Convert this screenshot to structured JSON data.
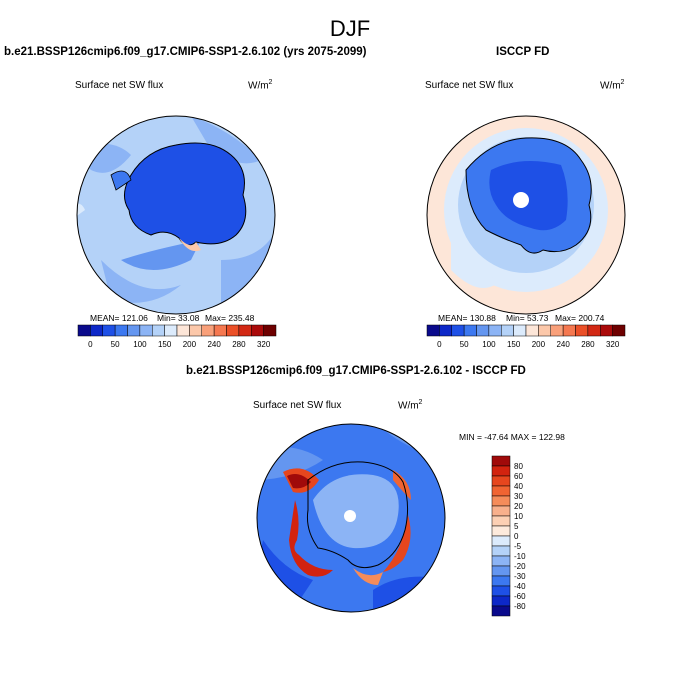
{
  "title": "DJF",
  "panels": [
    {
      "title": "b.e21.BSSP126cmip6.f09_g17.CMIP6-SSP1-2.6.102 (yrs 2075-2099)",
      "variable": "Surface net SW flux",
      "units_base": "W/m",
      "units_exp": "2",
      "stats": {
        "mean": "MEAN= 121.06",
        "min": "Min=  33.08",
        "max": "Max= 235.48"
      }
    },
    {
      "title": "ISCCP FD",
      "variable": "Surface net SW flux",
      "units_base": "W/m",
      "units_exp": "2",
      "stats": {
        "mean": "MEAN= 130.88",
        "min": "Min=  53.73",
        "max": "Max= 200.74"
      }
    },
    {
      "title": "b.e21.BSSP126cmip6.f09_g17.CMIP6-SSP1-2.6.102 - ISCCP FD",
      "variable": "Surface net SW flux",
      "units_base": "W/m",
      "units_exp": "2",
      "minmax": "MIN = -47.64 MAX = 122.98"
    }
  ],
  "abs_colorbar": {
    "labels": [
      "0",
      "50",
      "100",
      "150",
      "200",
      "240",
      "280",
      "320"
    ],
    "colors": [
      "#0a0a8c",
      "#0d28c8",
      "#1e50e6",
      "#3c78f0",
      "#6496f0",
      "#8cb4f5",
      "#b4d2f8",
      "#dcebfc",
      "#fde6d8",
      "#fcc8aa",
      "#f9a07a",
      "#f57850",
      "#eb5028",
      "#d22814",
      "#aa0a0a",
      "#6e0000"
    ]
  },
  "diff_colorbar": {
    "labels": [
      "80",
      "60",
      "40",
      "30",
      "20",
      "10",
      "5",
      "0",
      "-5",
      "-10",
      "-20",
      "-30",
      "-40",
      "-60",
      "-80"
    ],
    "colors": [
      "#a00a0a",
      "#d2230f",
      "#e6461e",
      "#f06432",
      "#f58c5a",
      "#f8b08c",
      "#fcd0b4",
      "#fdeadc",
      "#dcebfc",
      "#b4d2f8",
      "#8cb4f5",
      "#6496f0",
      "#3c78f0",
      "#1e50e6",
      "#0d28c8",
      "#0a0a8c"
    ]
  }
}
